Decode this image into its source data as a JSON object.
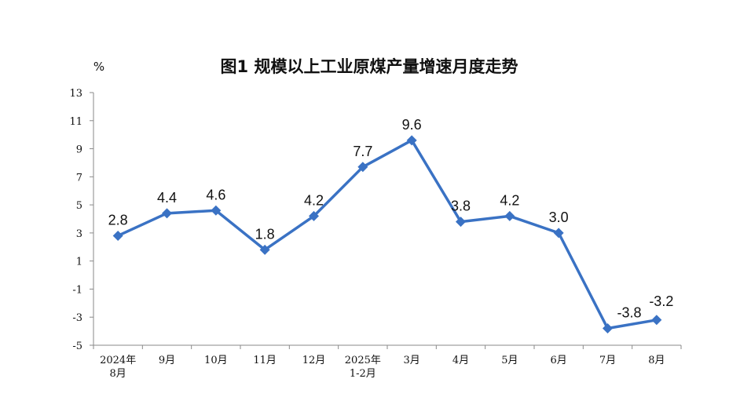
{
  "chart_data": {
    "type": "line",
    "title": "图1  规模以上工业原煤产量增速月度走势",
    "ylabel": "%",
    "xlabel": "",
    "categories": [
      [
        "2024年",
        "8月"
      ],
      [
        "9月"
      ],
      [
        "10月"
      ],
      [
        "11月"
      ],
      [
        "12月"
      ],
      [
        "2025年",
        "1-2月"
      ],
      [
        "3月"
      ],
      [
        "4月"
      ],
      [
        "5月"
      ],
      [
        "6月"
      ],
      [
        "7月"
      ],
      [
        "8月"
      ]
    ],
    "series": [
      {
        "values": [
          2.8,
          4.4,
          4.6,
          1.8,
          4.2,
          7.7,
          9.6,
          3.8,
          4.2,
          3.0,
          -3.8,
          -3.2
        ],
        "labels": [
          "2.8",
          "4.4",
          "4.6",
          "1.8",
          "4.2",
          "7.7",
          "9.6",
          "3.8",
          "4.2",
          "3.0",
          "-3.8",
          "-3.2"
        ]
      }
    ],
    "ylim": [
      -5,
      13
    ],
    "yticks": [
      "13",
      "11",
      "9",
      "7",
      "5",
      "3",
      "1",
      "-1",
      "-3",
      "-5"
    ],
    "grid": false,
    "line_color": "#3a72c4"
  }
}
